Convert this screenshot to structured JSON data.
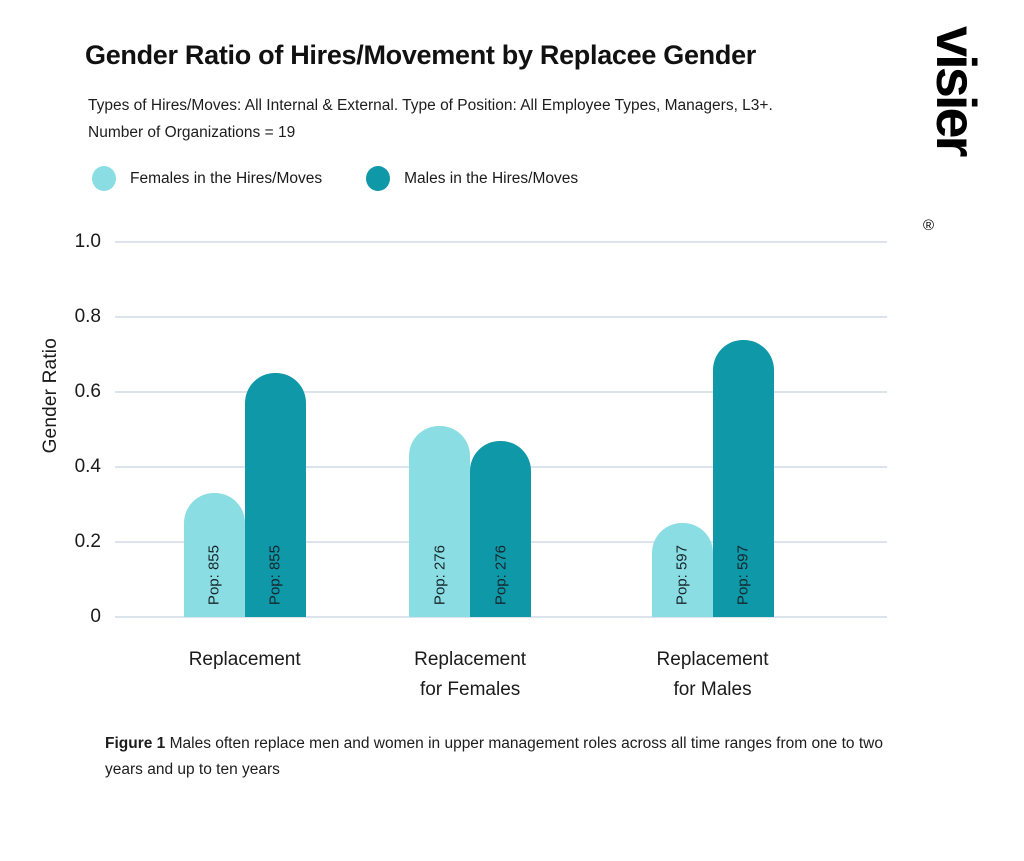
{
  "header": {
    "title": "Gender Ratio of Hires/Movement by Replacee Gender",
    "subtitle_line1": "Types of Hires/Moves: All Internal & External. Type of Position: All Employee Types, Managers, L3+.",
    "subtitle_line2": "Number of Organizations = 19"
  },
  "legend": {
    "items": [
      {
        "label": "Females in the Hires/Moves",
        "color": "#8adde2"
      },
      {
        "label": "Males in the Hires/Moves",
        "color": "#0f98a8"
      }
    ]
  },
  "chart_data": {
    "type": "bar",
    "title": "Gender Ratio of Hires/Movement by Replacee Gender",
    "categories": [
      "Replacement",
      "Replacement for Females",
      "Replacement for Males"
    ],
    "category_lines": [
      [
        "Replacement"
      ],
      [
        "Replacement",
        "for Females"
      ],
      [
        "Replacement",
        "for Males"
      ]
    ],
    "series": [
      {
        "name": "Females in the Hires/Moves",
        "color": "#8adde2",
        "values": [
          0.33,
          0.51,
          0.25
        ]
      },
      {
        "name": "Males in the Hires/Moves",
        "color": "#0f98a8",
        "values": [
          0.65,
          0.47,
          0.74
        ]
      }
    ],
    "populations": [
      855,
      276,
      597
    ],
    "bar_labels": [
      "Pop: 855",
      "Pop: 276",
      "Pop: 597"
    ],
    "xlabel": "",
    "ylabel": "Gender Ratio",
    "ylim": [
      0,
      1.0
    ],
    "yticks": [
      {
        "value": 0,
        "label": "0"
      },
      {
        "value": 0.2,
        "label": "0.2"
      },
      {
        "value": 0.4,
        "label": "0.4"
      },
      {
        "value": 0.6,
        "label": "0.6"
      },
      {
        "value": 0.8,
        "label": "0.8"
      },
      {
        "value": 1.0,
        "label": "1.0"
      }
    ],
    "grid": "horizontal",
    "legend_position": "top"
  },
  "caption": {
    "label": "Figure 1",
    "text": " Males often replace men and women in upper management roles across all time ranges from one to two years and up to ten years"
  },
  "branding": {
    "logo_text": "visier",
    "registered_mark": "®"
  },
  "colors": {
    "female_bar": "#8adde2",
    "male_bar": "#0f98a8",
    "gridline": "#dde3ec",
    "text": "#1a1a1a"
  }
}
